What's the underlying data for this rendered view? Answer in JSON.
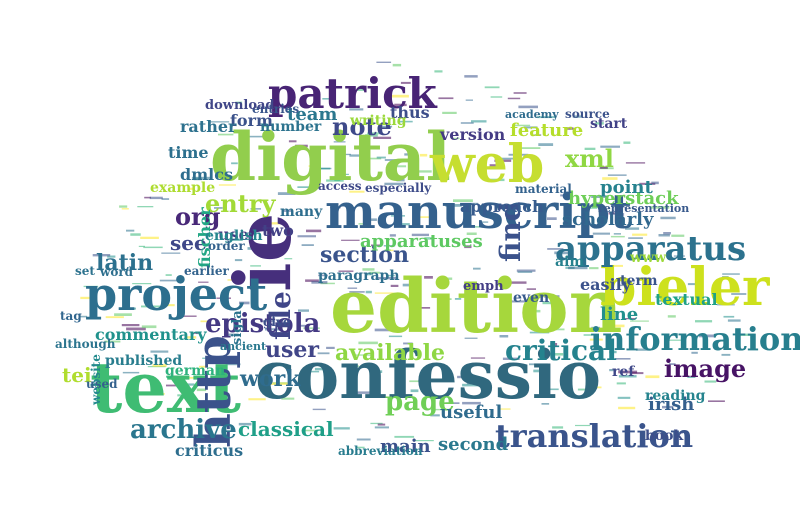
{
  "words": [
    {
      "text": "edition",
      "color": "#a6d73c"
    },
    {
      "text": "confessio",
      "color": "#30687e"
    },
    {
      "text": "digital",
      "color": "#92ce4d"
    },
    {
      "text": "text",
      "color": "#3fbc73"
    },
    {
      "text": "web",
      "color": "#c6de30"
    },
    {
      "text": "manuscript",
      "color": "#34618d"
    },
    {
      "text": "ie",
      "color": "#462f7c"
    },
    {
      "text": "project",
      "color": "#2d6f8e"
    },
    {
      "text": "bieler",
      "color": "#cde11d"
    },
    {
      "text": "http",
      "color": "#3b528b"
    },
    {
      "text": "patrick",
      "color": "#482475"
    },
    {
      "text": "apparatus",
      "color": "#2c728e"
    },
    {
      "text": "information",
      "color": "#277f8e"
    },
    {
      "text": "translation",
      "color": "#3a548c"
    },
    {
      "text": "archive",
      "color": "#2a768e"
    },
    {
      "text": "epistola",
      "color": "#443983"
    },
    {
      "text": "critical",
      "color": "#25838e"
    },
    {
      "text": "file",
      "color": "#404688"
    },
    {
      "text": "available",
      "color": "#8fd744"
    },
    {
      "text": "page",
      "color": "#70cf57"
    },
    {
      "text": "image",
      "color": "#471365"
    },
    {
      "text": "xml",
      "color": "#90d743"
    },
    {
      "text": "find",
      "color": "#3b528b"
    },
    {
      "text": "work",
      "color": "#2f6c8e"
    },
    {
      "text": "note",
      "color": "#3e4989"
    },
    {
      "text": "entry",
      "color": "#a2da37"
    },
    {
      "text": "latin",
      "color": "#2c718e"
    },
    {
      "text": "section",
      "color": "#3a548c"
    },
    {
      "text": "user",
      "color": "#404588"
    },
    {
      "text": "org",
      "color": "#482878"
    },
    {
      "text": "tei",
      "color": "#b0dd2f"
    },
    {
      "text": "classical",
      "color": "#1f9f88"
    },
    {
      "text": "commentary",
      "color": "#20928c"
    },
    {
      "text": "scholarly",
      "color": "#31688e"
    },
    {
      "text": "apparatuses",
      "color": "#5ec962"
    },
    {
      "text": "hyperstack",
      "color": "#6ece58"
    },
    {
      "text": "line",
      "color": "#21908d"
    },
    {
      "text": "irish",
      "color": "#355f8d"
    },
    {
      "text": "point",
      "color": "#26828e"
    },
    {
      "text": "feature",
      "color": "#b5de2b"
    },
    {
      "text": "see",
      "color": "#3f4788"
    },
    {
      "text": "criticus",
      "color": "#2e6e8e"
    },
    {
      "text": "second",
      "color": "#2a788e"
    },
    {
      "text": "main",
      "color": "#3b518b"
    },
    {
      "text": "book",
      "color": "#3d4e8a"
    },
    {
      "text": "published",
      "color": "#287d8e"
    },
    {
      "text": "paragraph",
      "color": "#2e6f8e"
    },
    {
      "text": "version",
      "color": "#443b84"
    },
    {
      "text": "team",
      "color": "#2a778e"
    },
    {
      "text": "form",
      "color": "#3b528b"
    },
    {
      "text": "fischer",
      "color": "#22a785"
    },
    {
      "text": "dmlcs",
      "color": "#2e6d8e"
    },
    {
      "text": "time",
      "color": "#2d708e"
    },
    {
      "text": "rather",
      "color": "#2d718e"
    },
    {
      "text": "useful",
      "color": "#2f6b8e"
    },
    {
      "text": "approach",
      "color": "#375b8d"
    },
    {
      "text": "easily",
      "color": "#3b528b"
    },
    {
      "text": "thus",
      "color": "#3d4e8a"
    },
    {
      "text": "german",
      "color": "#2db27d"
    },
    {
      "text": "website",
      "color": "#238a8d"
    },
    {
      "text": "term",
      "color": "#3a548c"
    },
    {
      "text": "even",
      "color": "#375a8c"
    },
    {
      "text": "use",
      "color": "#453581"
    },
    {
      "text": "two",
      "color": "#424186"
    },
    {
      "text": "many",
      "color": "#2e6e8e"
    },
    {
      "text": "example",
      "color": "#addc30"
    },
    {
      "text": "english",
      "color": "#24868e"
    },
    {
      "text": "ref",
      "color": "#3f4889"
    },
    {
      "text": "emph",
      "color": "#433e85"
    },
    {
      "text": "abbreviation",
      "color": "#287c8e"
    },
    {
      "text": "number",
      "color": "#2c738e"
    },
    {
      "text": "used",
      "color": "#34618d"
    },
    {
      "text": "sigla",
      "color": "#2b748e"
    },
    {
      "text": "access",
      "color": "#3f4889"
    },
    {
      "text": "writing",
      "color": "#9bd93c"
    },
    {
      "text": "entries",
      "color": "#39568c"
    },
    {
      "text": "download",
      "color": "#404688"
    },
    {
      "text": "especially",
      "color": "#3e4c8a"
    },
    {
      "text": "material",
      "color": "#33628d"
    },
    {
      "text": "textual",
      "color": "#1fa187"
    },
    {
      "text": "reading",
      "color": "#25848e"
    },
    {
      "text": "aim",
      "color": "#26818e"
    },
    {
      "text": "www",
      "color": "#9dd93b"
    },
    {
      "text": "start",
      "color": "#414287"
    },
    {
      "text": "order",
      "color": "#34618d"
    },
    {
      "text": "give",
      "color": "#3c508b"
    },
    {
      "text": "ancient",
      "color": "#2a788e"
    },
    {
      "text": "word",
      "color": "#2e6f8e"
    },
    {
      "text": "set",
      "color": "#2c728e"
    },
    {
      "text": "tag",
      "color": "#31668e"
    },
    {
      "text": "although",
      "color": "#2b748e"
    },
    {
      "text": "earlier",
      "color": "#33638d"
    },
    {
      "text": "academy",
      "color": "#2f6c8e"
    },
    {
      "text": "source",
      "color": "#3b528b"
    },
    {
      "text": "representation",
      "color": "#38598c"
    }
  ],
  "colors": {
    "background": "#ffffff"
  }
}
